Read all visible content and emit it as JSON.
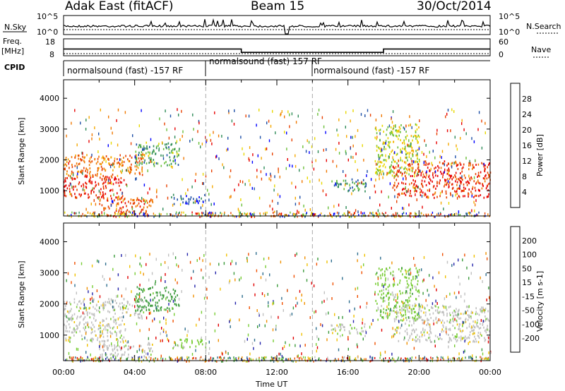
{
  "header": {
    "station": "Adak East (fitACF)",
    "beam": "Beam 15",
    "date": "30/Oct/2014"
  },
  "top_panels": {
    "nsky_label": "N.Sky",
    "nsearch_label": "N.Search",
    "nsky_ticks": [
      "10^5",
      "10^0"
    ],
    "nsearch_ticks": [
      "10^5",
      "10^0"
    ],
    "freq_label": "Freq.",
    "freq_unit": "[MHz]",
    "freq_ticks": [
      "18",
      "8"
    ],
    "nave_label": "Nave",
    "nave_ticks": [
      "60",
      "0"
    ],
    "cpid_label": "CPID",
    "cpid_segments": [
      "normalsound (fast) -157 RF",
      "normalsound (fast) 157 RF",
      "normalsound (fast) -157 RF"
    ]
  },
  "power_panel": {
    "ylabel": "Slant Range [km]",
    "yticks": [
      "4000",
      "3000",
      "2000",
      "1000"
    ],
    "colorbar_label": "Power [dB]",
    "colorbar_ticks": [
      "28",
      "24",
      "20",
      "16",
      "12",
      "8",
      "4"
    ],
    "colors": [
      "#0000ff",
      "#1c4ea6",
      "#2e8b57",
      "#6abf3a",
      "#e8d800",
      "#f5a800",
      "#f07800",
      "#e84000",
      "#e80000"
    ]
  },
  "velocity_panel": {
    "ylabel": "Slant Range [km]",
    "yticks": [
      "4000",
      "3000",
      "2000",
      "1000"
    ],
    "colorbar_label": "Velocity [m s-1]",
    "colorbar_ticks": [
      "200",
      "100",
      "50",
      "15",
      "-15",
      "-50",
      "-100",
      "-200"
    ],
    "colors": [
      "#2222aa",
      "#2e6e8e",
      "#3a9a3a",
      "#77cc33",
      "#c0c0c0",
      "#f0c000",
      "#f09000",
      "#f05000",
      "#e00000"
    ]
  },
  "x_axis": {
    "label": "Time UT",
    "ticks": [
      "00:00",
      "04:00",
      "08:00",
      "12:00",
      "16:00",
      "20:00",
      "00:00"
    ]
  },
  "chart_data": {
    "type": "heatmap",
    "title": "Adak East (fitACF)",
    "subtitle": "Beam 15",
    "date": "30/Oct/2014",
    "xlabel": "Time UT",
    "xlim_hours": [
      0,
      24
    ],
    "ylabel": "Slant Range [km]",
    "ylim_km": [
      180,
      4600
    ],
    "frequency_MHz": [
      {
        "start_hour": 0,
        "end_hour": 10,
        "value": 12
      },
      {
        "start_hour": 10,
        "end_hour": 18,
        "value": 10
      },
      {
        "start_hour": 18,
        "end_hour": 24,
        "value": 12
      }
    ],
    "cpid": [
      {
        "start_hour": 0,
        "end_hour": 8,
        "name": "normalsound (fast) -157 RF"
      },
      {
        "start_hour": 8,
        "end_hour": 14,
        "name": "normalsound (fast) 157 RF"
      },
      {
        "start_hour": 14,
        "end_hour": 24,
        "name": "normalsound (fast) -157 RF"
      }
    ],
    "scatter_regions": [
      {
        "hours": [
          0,
          3.5
        ],
        "range_km": [
          800,
          1500
        ],
        "power_dB": 28,
        "velocity": -15
      },
      {
        "hours": [
          0,
          4.5
        ],
        "range_km": [
          1500,
          2200
        ],
        "power_dB": 22,
        "velocity": -15
      },
      {
        "hours": [
          2,
          5
        ],
        "range_km": [
          300,
          800
        ],
        "power_dB": 24,
        "velocity": -15
      },
      {
        "hours": [
          4,
          6.5
        ],
        "range_km": [
          1800,
          2600
        ],
        "power_dB": 10,
        "velocity": 50
      },
      {
        "hours": [
          6,
          8
        ],
        "range_km": [
          600,
          900
        ],
        "power_dB": 6,
        "velocity": 15
      },
      {
        "hours": [
          11.5,
          12.5
        ],
        "range_km": [
          200,
          350
        ],
        "power_dB": 22,
        "velocity": 50
      },
      {
        "hours": [
          15,
          17
        ],
        "range_km": [
          1000,
          1400
        ],
        "power_dB": 8,
        "velocity": -15
      },
      {
        "hours": [
          17.5,
          20
        ],
        "range_km": [
          1500,
          3200
        ],
        "power_dB": 14,
        "velocity": 15
      },
      {
        "hours": [
          18.5,
          24
        ],
        "range_km": [
          800,
          2000
        ],
        "power_dB": 26,
        "velocity": -15
      }
    ]
  }
}
